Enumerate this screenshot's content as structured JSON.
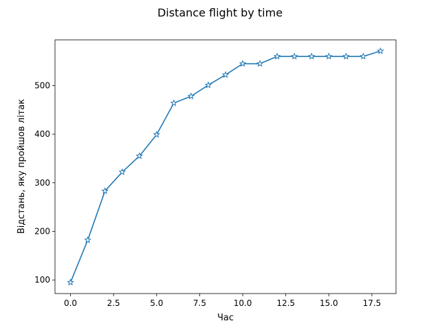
{
  "chart_data": {
    "type": "line",
    "title": "Distance flight by time",
    "xlabel": "Час",
    "ylabel": "Відстань, яку пройшов літак",
    "x": [
      0,
      1,
      2,
      3,
      4,
      5,
      6,
      7,
      8,
      9,
      10,
      11,
      12,
      13,
      14,
      15,
      16,
      17,
      18
    ],
    "series": [
      {
        "values": [
          95,
          182,
          283,
          322,
          355,
          399,
          464,
          478,
          501,
          522,
          545,
          545,
          560,
          560,
          560,
          560,
          560,
          560,
          571
        ],
        "color": "#1f77b4",
        "marker": "star"
      }
    ],
    "xlim": [
      -0.9,
      18.9
    ],
    "ylim": [
      72,
      594
    ],
    "xticks": [
      0.0,
      2.5,
      5.0,
      7.5,
      10.0,
      12.5,
      15.0,
      17.5
    ],
    "xtick_labels": [
      "0.0",
      "2.5",
      "5.0",
      "7.5",
      "10.0",
      "12.5",
      "15.0",
      "17.5"
    ],
    "yticks": [
      100,
      200,
      300,
      400,
      500
    ],
    "ytick_labels": [
      "100",
      "200",
      "300",
      "400",
      "500"
    ],
    "grid": false,
    "legend": "none"
  }
}
